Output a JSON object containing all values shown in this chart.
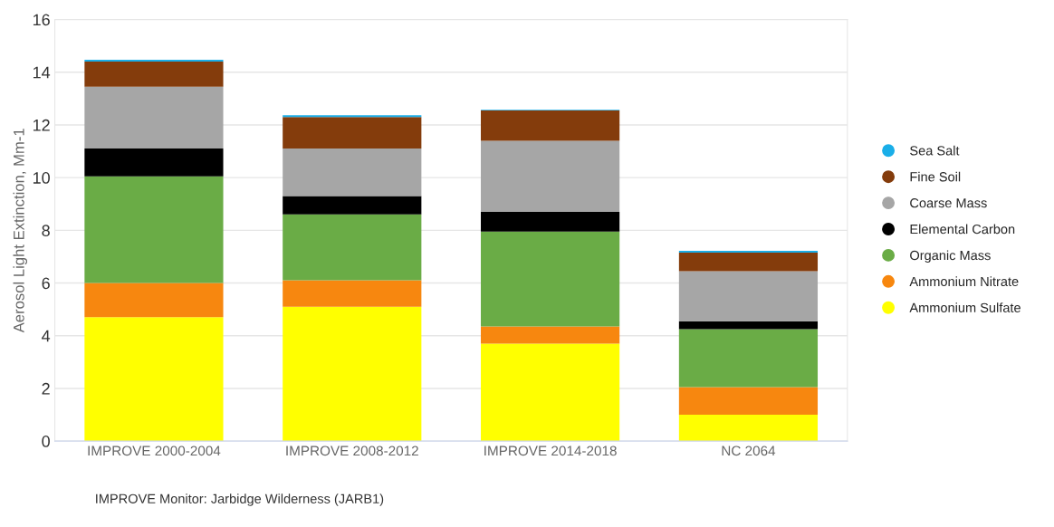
{
  "chart_data": {
    "type": "bar",
    "stacked": true,
    "ylabel": "Aerosol Light Extinction, Mm-1",
    "categories": [
      "IMPROVE 2000-2004",
      "IMPROVE 2008-2012",
      "IMPROVE 2014-2018",
      "NC 2064"
    ],
    "series": [
      {
        "name": "Ammonium Sulfate",
        "color": "#ffff00",
        "values": [
          4.7,
          5.1,
          3.7,
          1.0
        ]
      },
      {
        "name": "Ammonium Nitrate",
        "color": "#f7870f",
        "values": [
          1.3,
          1.0,
          0.65,
          1.05
        ]
      },
      {
        "name": "Organic Mass",
        "color": "#6aac46",
        "values": [
          4.05,
          2.5,
          3.6,
          2.2
        ]
      },
      {
        "name": "Elemental Carbon",
        "color": "#000000",
        "values": [
          1.05,
          0.7,
          0.75,
          0.3
        ]
      },
      {
        "name": "Coarse Mass",
        "color": "#a6a6a6",
        "values": [
          2.35,
          1.8,
          2.7,
          1.9
        ]
      },
      {
        "name": "Fine Soil",
        "color": "#843c0c",
        "values": [
          0.95,
          1.2,
          1.15,
          0.7
        ]
      },
      {
        "name": "Sea Salt",
        "color": "#1aaee8",
        "values": [
          0.07,
          0.07,
          0.02,
          0.07
        ]
      }
    ],
    "ylim": [
      0,
      16
    ],
    "yticks": [
      0,
      2,
      4,
      6,
      8,
      10,
      12,
      14,
      16
    ],
    "grid": "y",
    "legend": "right",
    "annotations": [
      "IMPROVE Monitor: Jarbidge Wilderness (JARB1)"
    ]
  }
}
